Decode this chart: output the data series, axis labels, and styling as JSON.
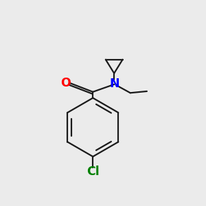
{
  "background_color": "#ebebeb",
  "bond_color": "#1a1a1a",
  "O_color": "#ff0000",
  "N_color": "#0000ff",
  "Cl_color": "#008000",
  "line_width": 1.6,
  "font_size": 11.5,
  "figsize": [
    3.0,
    3.0
  ],
  "dpi": 100,
  "xlim": [
    0,
    10
  ],
  "ylim": [
    0,
    10
  ]
}
